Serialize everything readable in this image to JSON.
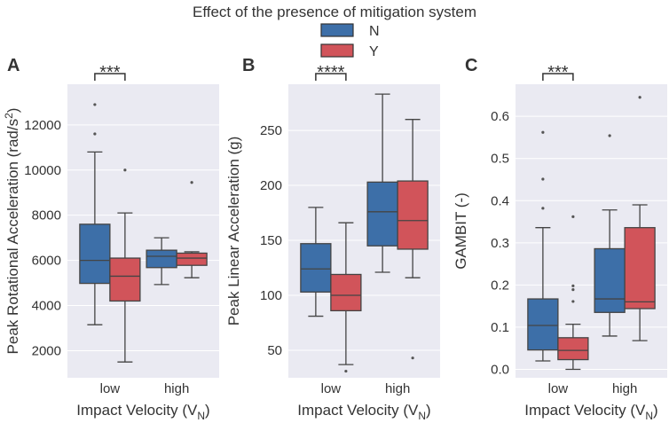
{
  "figure": {
    "legend_title": "Effect of the presence of mitigation system",
    "legend": [
      {
        "label": "N",
        "color": "#3d6fa8"
      },
      {
        "label": "Y",
        "color": "#d1545a"
      }
    ]
  },
  "chart_data": [
    {
      "type": "box",
      "panel": "A",
      "xlabel": "Impact Velocity (V",
      "xlabel_sub": "N",
      "ylabel": "Peak Rotational Acceleration (rad/s",
      "ylabel_sup": "2",
      "ylim": [
        800,
        13800
      ],
      "yticks": [
        2000,
        4000,
        6000,
        8000,
        10000,
        12000
      ],
      "ytick_labels": [
        "2000",
        "4000",
        "6000",
        "8000",
        "10000",
        "12000"
      ],
      "categories": [
        "low",
        "high"
      ],
      "significance": {
        "category": "low",
        "label": "***"
      },
      "series": [
        {
          "name": "N",
          "boxes": [
            {
              "whislo": 3150,
              "q1": 4980,
              "med": 6000,
              "q3": 7600,
              "whishi": 10800,
              "fliers": [
                11600,
                12900
              ]
            },
            {
              "whislo": 4930,
              "q1": 5680,
              "med": 6180,
              "q3": 6450,
              "whishi": 7000,
              "fliers": []
            }
          ]
        },
        {
          "name": "Y",
          "boxes": [
            {
              "whislo": 1500,
              "q1": 4200,
              "med": 5300,
              "q3": 6100,
              "whishi": 8100,
              "fliers": [
                10000
              ]
            },
            {
              "whislo": 5230,
              "q1": 5780,
              "med": 6100,
              "q3": 6320,
              "whishi": 6380,
              "fliers": [
                9450
              ]
            }
          ]
        }
      ]
    },
    {
      "type": "box",
      "panel": "B",
      "xlabel": "Impact Velocity (V",
      "xlabel_sub": "N",
      "ylabel": "Peak Linear Acceleration (g)",
      "ylabel_sup": "",
      "ylim": [
        25,
        292
      ],
      "yticks": [
        50,
        100,
        150,
        200,
        250
      ],
      "ytick_labels": [
        "50",
        "100",
        "150",
        "200",
        "250"
      ],
      "categories": [
        "low",
        "high"
      ],
      "significance": {
        "category": "low",
        "label": "****"
      },
      "series": [
        {
          "name": "N",
          "boxes": [
            {
              "whislo": 81,
              "q1": 103,
              "med": 124,
              "q3": 147,
              "whishi": 180,
              "fliers": []
            },
            {
              "whislo": 121,
              "q1": 145,
              "med": 176,
              "q3": 203,
              "whishi": 283,
              "fliers": []
            }
          ]
        },
        {
          "name": "Y",
          "boxes": [
            {
              "whislo": 37,
              "q1": 86,
              "med": 100,
              "q3": 119,
              "whishi": 166,
              "fliers": [
                31
              ]
            },
            {
              "whislo": 116,
              "q1": 142,
              "med": 168,
              "q3": 204,
              "whishi": 260,
              "fliers": [
                43
              ]
            }
          ]
        }
      ]
    },
    {
      "type": "box",
      "panel": "C",
      "xlabel": "Impact Velocity (V",
      "xlabel_sub": "N",
      "ylabel": "GAMBIT (-)",
      "ylabel_sup": "",
      "ylim": [
        -0.02,
        0.676
      ],
      "yticks": [
        0.0,
        0.1,
        0.2,
        0.3,
        0.4,
        0.5,
        0.6
      ],
      "ytick_labels": [
        "0.0",
        "0.1",
        "0.2",
        "0.3",
        "0.4",
        "0.5",
        "0.6"
      ],
      "categories": [
        "low",
        "high"
      ],
      "significance": {
        "category": "low",
        "label": "***"
      },
      "series": [
        {
          "name": "N",
          "boxes": [
            {
              "whislo": 0.02,
              "q1": 0.046,
              "med": 0.104,
              "q3": 0.167,
              "whishi": 0.336,
              "fliers": [
                0.382,
                0.451,
                0.562
              ]
            },
            {
              "whislo": 0.079,
              "q1": 0.135,
              "med": 0.167,
              "q3": 0.286,
              "whishi": 0.378,
              "fliers": [
                0.554
              ]
            }
          ]
        },
        {
          "name": "Y",
          "boxes": [
            {
              "whislo": 0.0,
              "q1": 0.023,
              "med": 0.045,
              "q3": 0.075,
              "whishi": 0.107,
              "fliers": [
                0.161,
                0.189,
                0.198,
                0.362
              ]
            },
            {
              "whislo": 0.068,
              "q1": 0.144,
              "med": 0.16,
              "q3": 0.336,
              "whishi": 0.39,
              "fliers": [
                0.645
              ]
            }
          ]
        }
      ]
    }
  ]
}
